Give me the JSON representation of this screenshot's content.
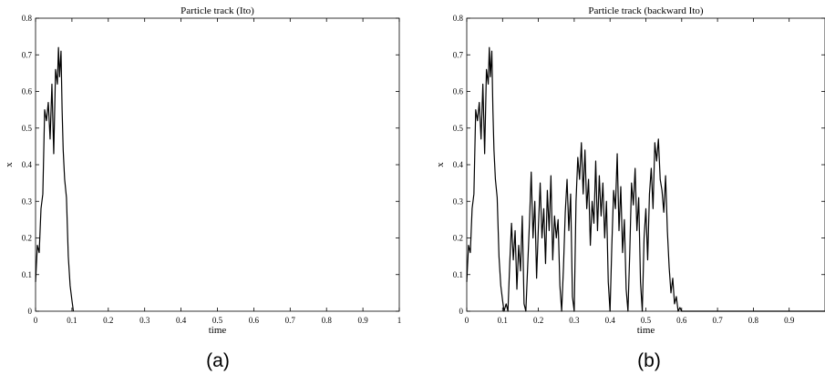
{
  "chart_data": [
    {
      "type": "line",
      "title": "Particle track (Ito)",
      "xlabel": "time",
      "ylabel": "x",
      "xlim": [
        0,
        1
      ],
      "ylim": [
        0,
        0.8
      ],
      "xticks": [
        "0",
        "0.1",
        "0.2",
        "0.3",
        "0.4",
        "0.5",
        "0.6",
        "0.7",
        "0.8",
        "0.9",
        "1"
      ],
      "yticks": [
        "0",
        "0.1",
        "0.2",
        "0.3",
        "0.4",
        "0.5",
        "0.6",
        "0.7",
        "0.8"
      ],
      "caption": "(a)",
      "grid": false,
      "series": [
        {
          "color": "#000000",
          "x": [
            0.0,
            0.005,
            0.01,
            0.015,
            0.02,
            0.025,
            0.03,
            0.035,
            0.04,
            0.045,
            0.05,
            0.055,
            0.06,
            0.063,
            0.066,
            0.07,
            0.073,
            0.076,
            0.08,
            0.085,
            0.09,
            0.095,
            0.1,
            0.104
          ],
          "y": [
            0.08,
            0.18,
            0.16,
            0.28,
            0.32,
            0.55,
            0.52,
            0.57,
            0.47,
            0.62,
            0.43,
            0.66,
            0.62,
            0.72,
            0.64,
            0.71,
            0.55,
            0.44,
            0.36,
            0.31,
            0.15,
            0.07,
            0.03,
            0.0
          ]
        }
      ]
    },
    {
      "type": "line",
      "title": "Particle track (backward Ito)",
      "xlabel": "time",
      "ylabel": "x",
      "xlim": [
        0,
        1
      ],
      "ylim": [
        0,
        0.8
      ],
      "xticks": [
        "0",
        "0.1",
        "0.2",
        "0.3",
        "0.4",
        "0.5",
        "0.6",
        "0.7",
        "0.8",
        "0.9"
      ],
      "yticks": [
        "0",
        "0.1",
        "0.2",
        "0.3",
        "0.4",
        "0.5",
        "0.6",
        "0.7",
        "0.8"
      ],
      "caption": "(b)",
      "grid": false,
      "series": [
        {
          "color": "#000000",
          "x": [
            0.0,
            0.005,
            0.01,
            0.015,
            0.02,
            0.025,
            0.03,
            0.035,
            0.04,
            0.045,
            0.05,
            0.055,
            0.06,
            0.063,
            0.066,
            0.07,
            0.073,
            0.076,
            0.08,
            0.085,
            0.09,
            0.095,
            0.1,
            0.104,
            0.11,
            0.115,
            0.12,
            0.125,
            0.13,
            0.135,
            0.14,
            0.145,
            0.15,
            0.155,
            0.16,
            0.165,
            0.17,
            0.175,
            0.18,
            0.185,
            0.19,
            0.195,
            0.2,
            0.205,
            0.21,
            0.215,
            0.22,
            0.225,
            0.23,
            0.235,
            0.24,
            0.245,
            0.25,
            0.255,
            0.26,
            0.265,
            0.27,
            0.275,
            0.28,
            0.285,
            0.29,
            0.295,
            0.3,
            0.305,
            0.31,
            0.315,
            0.32,
            0.325,
            0.33,
            0.335,
            0.34,
            0.345,
            0.35,
            0.355,
            0.36,
            0.365,
            0.37,
            0.375,
            0.38,
            0.385,
            0.39,
            0.395,
            0.4,
            0.405,
            0.41,
            0.415,
            0.42,
            0.425,
            0.43,
            0.435,
            0.44,
            0.445,
            0.45,
            0.455,
            0.46,
            0.465,
            0.47,
            0.475,
            0.48,
            0.485,
            0.49,
            0.495,
            0.5,
            0.505,
            0.51,
            0.515,
            0.52,
            0.525,
            0.53,
            0.535,
            0.54,
            0.545,
            0.55,
            0.555,
            0.56,
            0.565,
            0.57,
            0.575,
            0.58,
            0.585,
            0.59,
            0.595,
            0.6,
            0.62,
            0.7,
            0.8,
            0.9,
            1.0
          ],
          "y": [
            0.08,
            0.18,
            0.16,
            0.28,
            0.32,
            0.55,
            0.52,
            0.57,
            0.47,
            0.62,
            0.43,
            0.66,
            0.62,
            0.72,
            0.64,
            0.71,
            0.55,
            0.44,
            0.36,
            0.31,
            0.15,
            0.07,
            0.03,
            0.0,
            0.02,
            0.0,
            0.13,
            0.24,
            0.14,
            0.22,
            0.06,
            0.18,
            0.11,
            0.26,
            0.02,
            0.0,
            0.12,
            0.24,
            0.38,
            0.2,
            0.3,
            0.09,
            0.23,
            0.35,
            0.2,
            0.28,
            0.13,
            0.33,
            0.22,
            0.37,
            0.14,
            0.26,
            0.2,
            0.25,
            0.07,
            0.0,
            0.12,
            0.27,
            0.36,
            0.22,
            0.32,
            0.04,
            0.0,
            0.3,
            0.42,
            0.36,
            0.46,
            0.32,
            0.44,
            0.28,
            0.36,
            0.18,
            0.3,
            0.24,
            0.41,
            0.22,
            0.37,
            0.26,
            0.35,
            0.2,
            0.3,
            0.08,
            0.0,
            0.18,
            0.33,
            0.28,
            0.43,
            0.22,
            0.34,
            0.16,
            0.25,
            0.06,
            0.0,
            0.16,
            0.35,
            0.29,
            0.39,
            0.22,
            0.31,
            0.08,
            0.0,
            0.2,
            0.28,
            0.14,
            0.32,
            0.39,
            0.28,
            0.46,
            0.41,
            0.47,
            0.36,
            0.33,
            0.27,
            0.37,
            0.22,
            0.12,
            0.05,
            0.09,
            0.02,
            0.04,
            0.0,
            0.01,
            0.0,
            0.0,
            0.0,
            0.0,
            0.0,
            0.0
          ]
        }
      ]
    }
  ]
}
